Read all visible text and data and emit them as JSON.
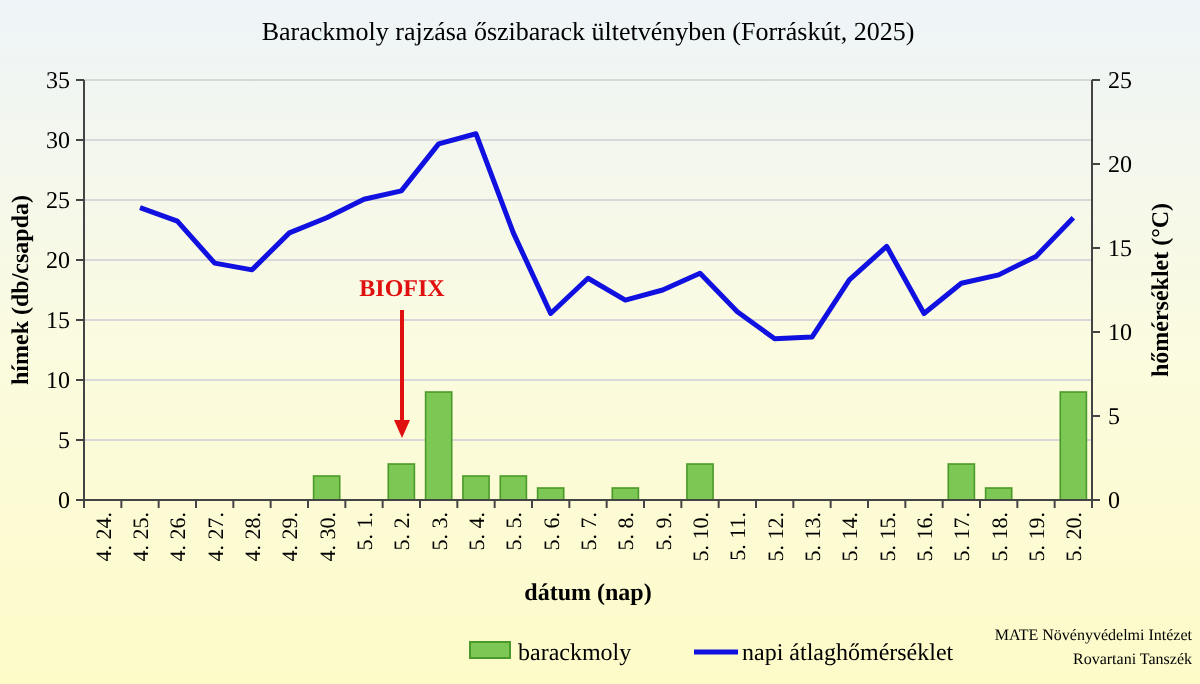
{
  "chart_data": {
    "type": "bar",
    "title": "Barackmoly rajzása őszibarack ültetvényben (Forráskút, 2025)",
    "xlabel": "dátum (nap)",
    "ylabel": "hímek (db/csapda)",
    "y2label": "hőmérséklet (°C)",
    "categories": [
      "4. 24.",
      "4. 25.",
      "4. 26.",
      "4. 27.",
      "4. 28.",
      "4. 29.",
      "4. 30.",
      "5. 1.",
      "5. 2.",
      "5. 3.",
      "5. 4.",
      "5. 5.",
      "5. 6.",
      "5. 7.",
      "5. 8.",
      "5. 9.",
      "5. 10.",
      "5. 11.",
      "5. 12.",
      "5. 13.",
      "5. 14.",
      "5. 15.",
      "5. 16.",
      "5. 17.",
      "5. 18.",
      "5. 19.",
      "5. 20."
    ],
    "series": [
      {
        "name": "barackmoly",
        "color": "#7dc855",
        "values": [
          0,
          0,
          0,
          0,
          0,
          0,
          2,
          0,
          3,
          9,
          2,
          2,
          1,
          0,
          1,
          0,
          3,
          0,
          0,
          0,
          0,
          0,
          0,
          3,
          1,
          0,
          9
        ]
      },
      {
        "name": "napi átlaghőmérséklet",
        "type": "line",
        "axis": "y2",
        "color": "#1010e0",
        "values": [
          null,
          17.4,
          16.6,
          14.1,
          13.7,
          15.9,
          16.8,
          17.9,
          18.4,
          21.2,
          21.8,
          15.9,
          11.1,
          13.2,
          11.9,
          12.5,
          13.5,
          11.2,
          9.6,
          9.7,
          13.1,
          15.1,
          11.1,
          12.9,
          13.4,
          14.5,
          16.8
        ]
      }
    ],
    "ylim": [
      0,
      35
    ],
    "yticks": [
      0,
      5,
      10,
      15,
      20,
      25,
      30,
      35
    ],
    "y2lim": [
      0,
      25
    ],
    "y2ticks": [
      0,
      5,
      10,
      15,
      20,
      25
    ],
    "grid": "y",
    "legend": "bottom",
    "marker": "none",
    "annotations": [
      "BIOFIX",
      "MATE Növényvédelmi Intézet",
      "Rovartani Tanszék"
    ]
  }
}
